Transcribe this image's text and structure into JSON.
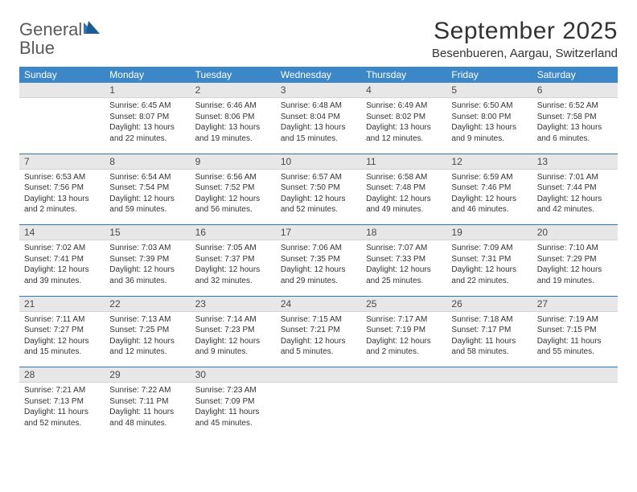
{
  "logo": {
    "top": "General",
    "bottom": "Blue"
  },
  "title": "September 2025",
  "subtitle": "Besenbueren, Aargau, Switzerland",
  "colors": {
    "header_bg": "#3c87c7",
    "header_text": "#ffffff",
    "daynum_bg": "#e7e7e7",
    "week_separator": "#2f74b5",
    "logo_gray": "#5a5a5a",
    "logo_blue": "#2f74b5",
    "text": "#333333",
    "page_bg": "#ffffff"
  },
  "typography": {
    "title_fontsize": 30,
    "subtitle_fontsize": 15,
    "weekday_fontsize": 12,
    "daynum_fontsize": 12,
    "cell_fontsize": 10
  },
  "weekdays": [
    "Sunday",
    "Monday",
    "Tuesday",
    "Wednesday",
    "Thursday",
    "Friday",
    "Saturday"
  ],
  "weeks": [
    [
      {
        "num": "",
        "sunrise": "",
        "sunset": "",
        "daylight": ""
      },
      {
        "num": "1",
        "sunrise": "Sunrise: 6:45 AM",
        "sunset": "Sunset: 8:07 PM",
        "daylight": "Daylight: 13 hours and 22 minutes."
      },
      {
        "num": "2",
        "sunrise": "Sunrise: 6:46 AM",
        "sunset": "Sunset: 8:06 PM",
        "daylight": "Daylight: 13 hours and 19 minutes."
      },
      {
        "num": "3",
        "sunrise": "Sunrise: 6:48 AM",
        "sunset": "Sunset: 8:04 PM",
        "daylight": "Daylight: 13 hours and 15 minutes."
      },
      {
        "num": "4",
        "sunrise": "Sunrise: 6:49 AM",
        "sunset": "Sunset: 8:02 PM",
        "daylight": "Daylight: 13 hours and 12 minutes."
      },
      {
        "num": "5",
        "sunrise": "Sunrise: 6:50 AM",
        "sunset": "Sunset: 8:00 PM",
        "daylight": "Daylight: 13 hours and 9 minutes."
      },
      {
        "num": "6",
        "sunrise": "Sunrise: 6:52 AM",
        "sunset": "Sunset: 7:58 PM",
        "daylight": "Daylight: 13 hours and 6 minutes."
      }
    ],
    [
      {
        "num": "7",
        "sunrise": "Sunrise: 6:53 AM",
        "sunset": "Sunset: 7:56 PM",
        "daylight": "Daylight: 13 hours and 2 minutes."
      },
      {
        "num": "8",
        "sunrise": "Sunrise: 6:54 AM",
        "sunset": "Sunset: 7:54 PM",
        "daylight": "Daylight: 12 hours and 59 minutes."
      },
      {
        "num": "9",
        "sunrise": "Sunrise: 6:56 AM",
        "sunset": "Sunset: 7:52 PM",
        "daylight": "Daylight: 12 hours and 56 minutes."
      },
      {
        "num": "10",
        "sunrise": "Sunrise: 6:57 AM",
        "sunset": "Sunset: 7:50 PM",
        "daylight": "Daylight: 12 hours and 52 minutes."
      },
      {
        "num": "11",
        "sunrise": "Sunrise: 6:58 AM",
        "sunset": "Sunset: 7:48 PM",
        "daylight": "Daylight: 12 hours and 49 minutes."
      },
      {
        "num": "12",
        "sunrise": "Sunrise: 6:59 AM",
        "sunset": "Sunset: 7:46 PM",
        "daylight": "Daylight: 12 hours and 46 minutes."
      },
      {
        "num": "13",
        "sunrise": "Sunrise: 7:01 AM",
        "sunset": "Sunset: 7:44 PM",
        "daylight": "Daylight: 12 hours and 42 minutes."
      }
    ],
    [
      {
        "num": "14",
        "sunrise": "Sunrise: 7:02 AM",
        "sunset": "Sunset: 7:41 PM",
        "daylight": "Daylight: 12 hours and 39 minutes."
      },
      {
        "num": "15",
        "sunrise": "Sunrise: 7:03 AM",
        "sunset": "Sunset: 7:39 PM",
        "daylight": "Daylight: 12 hours and 36 minutes."
      },
      {
        "num": "16",
        "sunrise": "Sunrise: 7:05 AM",
        "sunset": "Sunset: 7:37 PM",
        "daylight": "Daylight: 12 hours and 32 minutes."
      },
      {
        "num": "17",
        "sunrise": "Sunrise: 7:06 AM",
        "sunset": "Sunset: 7:35 PM",
        "daylight": "Daylight: 12 hours and 29 minutes."
      },
      {
        "num": "18",
        "sunrise": "Sunrise: 7:07 AM",
        "sunset": "Sunset: 7:33 PM",
        "daylight": "Daylight: 12 hours and 25 minutes."
      },
      {
        "num": "19",
        "sunrise": "Sunrise: 7:09 AM",
        "sunset": "Sunset: 7:31 PM",
        "daylight": "Daylight: 12 hours and 22 minutes."
      },
      {
        "num": "20",
        "sunrise": "Sunrise: 7:10 AM",
        "sunset": "Sunset: 7:29 PM",
        "daylight": "Daylight: 12 hours and 19 minutes."
      }
    ],
    [
      {
        "num": "21",
        "sunrise": "Sunrise: 7:11 AM",
        "sunset": "Sunset: 7:27 PM",
        "daylight": "Daylight: 12 hours and 15 minutes."
      },
      {
        "num": "22",
        "sunrise": "Sunrise: 7:13 AM",
        "sunset": "Sunset: 7:25 PM",
        "daylight": "Daylight: 12 hours and 12 minutes."
      },
      {
        "num": "23",
        "sunrise": "Sunrise: 7:14 AM",
        "sunset": "Sunset: 7:23 PM",
        "daylight": "Daylight: 12 hours and 9 minutes."
      },
      {
        "num": "24",
        "sunrise": "Sunrise: 7:15 AM",
        "sunset": "Sunset: 7:21 PM",
        "daylight": "Daylight: 12 hours and 5 minutes."
      },
      {
        "num": "25",
        "sunrise": "Sunrise: 7:17 AM",
        "sunset": "Sunset: 7:19 PM",
        "daylight": "Daylight: 12 hours and 2 minutes."
      },
      {
        "num": "26",
        "sunrise": "Sunrise: 7:18 AM",
        "sunset": "Sunset: 7:17 PM",
        "daylight": "Daylight: 11 hours and 58 minutes."
      },
      {
        "num": "27",
        "sunrise": "Sunrise: 7:19 AM",
        "sunset": "Sunset: 7:15 PM",
        "daylight": "Daylight: 11 hours and 55 minutes."
      }
    ],
    [
      {
        "num": "28",
        "sunrise": "Sunrise: 7:21 AM",
        "sunset": "Sunset: 7:13 PM",
        "daylight": "Daylight: 11 hours and 52 minutes."
      },
      {
        "num": "29",
        "sunrise": "Sunrise: 7:22 AM",
        "sunset": "Sunset: 7:11 PM",
        "daylight": "Daylight: 11 hours and 48 minutes."
      },
      {
        "num": "30",
        "sunrise": "Sunrise: 7:23 AM",
        "sunset": "Sunset: 7:09 PM",
        "daylight": "Daylight: 11 hours and 45 minutes."
      },
      {
        "num": "",
        "sunrise": "",
        "sunset": "",
        "daylight": ""
      },
      {
        "num": "",
        "sunrise": "",
        "sunset": "",
        "daylight": ""
      },
      {
        "num": "",
        "sunrise": "",
        "sunset": "",
        "daylight": ""
      },
      {
        "num": "",
        "sunrise": "",
        "sunset": "",
        "daylight": ""
      }
    ]
  ]
}
